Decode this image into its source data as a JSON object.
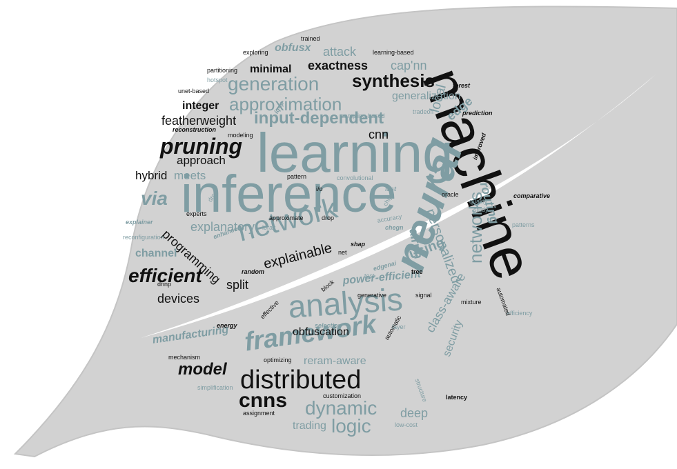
{
  "palette": {
    "background": "#ffffff",
    "leaf": "#d2d2d2",
    "leaf_edge": "#c4c4c4",
    "teal": "#7f9da3",
    "black": "#111111"
  },
  "words": [
    {
      "text": "machine",
      "color": "black"
    },
    {
      "text": "learning",
      "color": "teal"
    },
    {
      "text": "inference",
      "color": "teal"
    },
    {
      "text": "network",
      "color": "teal"
    },
    {
      "text": "neural",
      "color": "teal"
    },
    {
      "text": "analysis",
      "color": "teal"
    },
    {
      "text": "distributed",
      "color": "black"
    },
    {
      "text": "framework",
      "color": "teal"
    },
    {
      "text": "pruning",
      "color": "black"
    },
    {
      "text": "synthesis",
      "color": "black"
    },
    {
      "text": "generation",
      "color": "teal"
    },
    {
      "text": "approximation",
      "color": "teal"
    },
    {
      "text": "input-dependent",
      "color": "teal"
    },
    {
      "text": "cnns",
      "color": "black"
    },
    {
      "text": "dynamic",
      "color": "teal"
    },
    {
      "text": "logic",
      "color": "teal"
    },
    {
      "text": "efficient",
      "color": "black"
    },
    {
      "text": "via",
      "color": "teal"
    },
    {
      "text": "model",
      "color": "black"
    },
    {
      "text": "networks",
      "color": "teal"
    },
    {
      "text": "explainable",
      "color": "black"
    },
    {
      "text": "explanatory",
      "color": "teal"
    },
    {
      "text": "featherweight",
      "color": "black"
    },
    {
      "text": "programming",
      "color": "black"
    },
    {
      "text": "approach",
      "color": "black"
    },
    {
      "text": "hybrid",
      "color": "black"
    },
    {
      "text": "meets",
      "color": "teal"
    },
    {
      "text": "integer",
      "color": "black"
    },
    {
      "text": "minimal",
      "color": "black"
    },
    {
      "text": "exactness",
      "color": "black"
    },
    {
      "text": "attack",
      "color": "teal"
    },
    {
      "text": "obfusx",
      "color": "teal"
    },
    {
      "text": "cap'nn",
      "color": "teal"
    },
    {
      "text": "generalization",
      "color": "teal"
    },
    {
      "text": "edge",
      "color": "teal"
    },
    {
      "text": "local",
      "color": "teal"
    },
    {
      "text": "cnn",
      "color": "black"
    },
    {
      "text": "personalized",
      "color": "teal"
    },
    {
      "text": "routing",
      "color": "teal"
    },
    {
      "text": "using",
      "color": "teal"
    },
    {
      "text": "airnn",
      "color": "teal"
    },
    {
      "text": "power-efficient",
      "color": "teal"
    },
    {
      "text": "channel",
      "color": "teal"
    },
    {
      "text": "split",
      "color": "black"
    },
    {
      "text": "devices",
      "color": "black"
    },
    {
      "text": "obfuscation",
      "color": "black"
    },
    {
      "text": "manufacturing",
      "color": "teal"
    },
    {
      "text": "reram-aware",
      "color": "teal"
    },
    {
      "text": "class-aware",
      "color": "teal"
    },
    {
      "text": "security",
      "color": "teal"
    },
    {
      "text": "deep",
      "color": "teal"
    },
    {
      "text": "trading",
      "color": "teal"
    },
    {
      "text": "customization",
      "color": "black"
    },
    {
      "text": "assignment",
      "color": "black"
    },
    {
      "text": "simplification",
      "color": "teal"
    },
    {
      "text": "mechanism",
      "color": "black"
    },
    {
      "text": "optimizing",
      "color": "black"
    },
    {
      "text": "automatic",
      "color": "black"
    },
    {
      "text": "layer",
      "color": "teal"
    },
    {
      "text": "selection",
      "color": "teal"
    },
    {
      "text": "effective",
      "color": "black"
    },
    {
      "text": "energy",
      "color": "black"
    },
    {
      "text": "mixture",
      "color": "black"
    },
    {
      "text": "efficiency",
      "color": "teal"
    },
    {
      "text": "automated",
      "color": "black"
    },
    {
      "text": "signal",
      "color": "black"
    },
    {
      "text": "generative",
      "color": "black"
    },
    {
      "text": "test",
      "color": "teal"
    },
    {
      "text": "edgenai",
      "color": "teal"
    },
    {
      "text": "tree",
      "color": "black"
    },
    {
      "text": "block",
      "color": "black"
    },
    {
      "text": "random",
      "color": "black"
    },
    {
      "text": "net",
      "color": "black"
    },
    {
      "text": "shap",
      "color": "black"
    },
    {
      "text": "dnnp",
      "color": "black"
    },
    {
      "text": "reconfiguration",
      "color": "teal"
    },
    {
      "text": "explainer",
      "color": "teal"
    },
    {
      "text": "enhanced",
      "color": "teal"
    },
    {
      "text": "experts",
      "color": "black"
    },
    {
      "text": "drc",
      "color": "teal"
    },
    {
      "text": "lorax",
      "color": "teal"
    },
    {
      "text": "approximate",
      "color": "black"
    },
    {
      "text": "drop",
      "color": "black"
    },
    {
      "text": "accuracy",
      "color": "teal"
    },
    {
      "text": "chip",
      "color": "teal"
    },
    {
      "text": "i/o",
      "color": "black"
    },
    {
      "text": "fast",
      "color": "teal"
    },
    {
      "text": "pattern",
      "color": "black"
    },
    {
      "text": "convolutional",
      "color": "teal"
    },
    {
      "text": "chegn",
      "color": "teal"
    },
    {
      "text": "oracle",
      "color": "black"
    },
    {
      "text": "quality",
      "color": "teal"
    },
    {
      "text": "study",
      "color": "teal"
    },
    {
      "text": "comparative",
      "color": "black"
    },
    {
      "text": "patterns",
      "color": "teal"
    },
    {
      "text": "improved",
      "color": "black"
    },
    {
      "text": "tradeoff",
      "color": "teal"
    },
    {
      "text": "sampling-based",
      "color": "teal"
    },
    {
      "text": "iq-ip",
      "color": "teal"
    },
    {
      "text": "modeling",
      "color": "black"
    },
    {
      "text": "prediction",
      "color": "black"
    },
    {
      "text": "forest",
      "color": "black"
    },
    {
      "text": "reconstruction",
      "color": "black"
    },
    {
      "text": "unet-based",
      "color": "black"
    },
    {
      "text": "hotspot",
      "color": "teal"
    },
    {
      "text": "partitioning",
      "color": "black"
    },
    {
      "text": "exploring",
      "color": "black"
    },
    {
      "text": "trained",
      "color": "black"
    },
    {
      "text": "learning-based",
      "color": "black"
    },
    {
      "text": "latency",
      "color": "black"
    },
    {
      "text": "structure",
      "color": "teal"
    },
    {
      "text": "low-cost",
      "color": "teal"
    }
  ]
}
